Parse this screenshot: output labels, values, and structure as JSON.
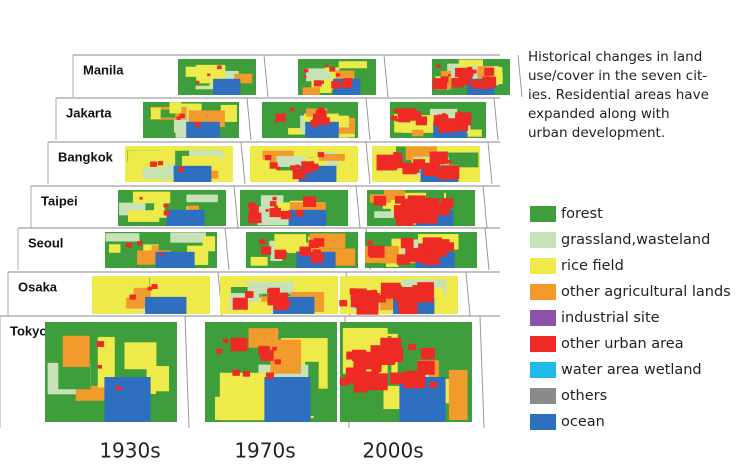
{
  "caption": [
    "Historical changes in land",
    "use/cover in the seven cit-",
    "ies.  Residential areas have",
    "expanded along with",
    "urban development."
  ],
  "cities": [
    "Manila",
    "Jakarta",
    "Bangkok",
    "Taipei",
    "Seoul",
    "Osaka",
    "Tokyo"
  ],
  "decades": [
    "1930s",
    "1970s",
    "2000s"
  ],
  "legend": [
    {
      "label": "forest",
      "color": "#3f9e3c"
    },
    {
      "label": "grassland,wasteland",
      "color": "#c6e2b6"
    },
    {
      "label": "rice field",
      "color": "#eeea4a"
    },
    {
      "label": "other agricultural lands",
      "color": "#f39a2c"
    },
    {
      "label": "industrial site",
      "color": "#8b54a8"
    },
    {
      "label": "other urban area",
      "color": "#ee2a24"
    },
    {
      "label": "water area wetland",
      "color": "#1fb9ea"
    },
    {
      "label": "others",
      "color": "#8a8a8a"
    },
    {
      "label": "ocean",
      "color": "#2f6fc0"
    }
  ]
}
